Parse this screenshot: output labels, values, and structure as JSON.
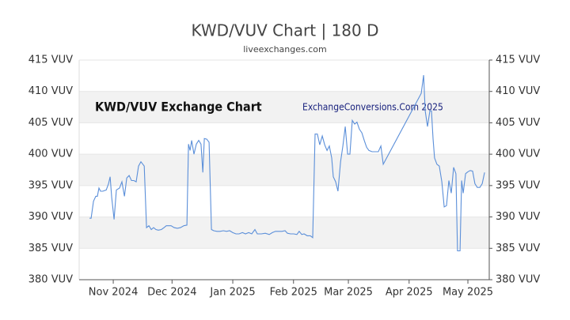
{
  "chart_data": {
    "type": "line",
    "title": "KWD/VUV Chart | 180 D",
    "subtitle": "liveexchanges.com",
    "annotations": [
      "KWD/VUV Exchange Chart",
      "ExchangeConversions.Com 2025"
    ],
    "xlim": [
      -17.4,
      191.9
    ],
    "xticks": [
      {
        "value": 0,
        "label": "Nov 2024"
      },
      {
        "value": 30,
        "label": "Dec 2024"
      },
      {
        "value": 61,
        "label": "Jan 2025"
      },
      {
        "value": 92,
        "label": "Feb 2025"
      },
      {
        "value": 120,
        "label": "Mar 2025"
      },
      {
        "value": 151,
        "label": "Apr 2025"
      },
      {
        "value": 181,
        "label": "May 2025"
      }
    ],
    "ylim": [
      380,
      415
    ],
    "yticks": [
      {
        "value": 380,
        "label": "380 VUV"
      },
      {
        "value": 385,
        "label": "385 VUV"
      },
      {
        "value": 390,
        "label": "390 VUV"
      },
      {
        "value": 395,
        "label": "395 VUV"
      },
      {
        "value": 400,
        "label": "400 VUV"
      },
      {
        "value": 405,
        "label": "405 VUV"
      },
      {
        "value": 410,
        "label": "410 VUV"
      },
      {
        "value": 415,
        "label": "415 VUV"
      }
    ],
    "grid": true,
    "series": [
      {
        "color": "#5b8fd9",
        "x": [
          -12.1,
          -11.3,
          -10.1,
          -8.9,
          -8.1,
          -7.3,
          -6.5,
          -5.3,
          -3.6,
          -2.4,
          -1.6,
          -0.8,
          0.4,
          1.6,
          3.2,
          4.4,
          5.7,
          6.9,
          8.1,
          9.3,
          10.5,
          11.7,
          12.9,
          14.1,
          15.8,
          17.0,
          18.2,
          19.4,
          20.6,
          21.8,
          23.0,
          24.6,
          25.9,
          27.1,
          28.3,
          29.5,
          31.1,
          32.7,
          34.3,
          36.0,
          37.6,
          38.4,
          39.2,
          40.0,
          41.2,
          42.4,
          43.6,
          44.8,
          45.7,
          46.5,
          47.7,
          48.9,
          50.1,
          51.3,
          52.9,
          54.5,
          56.2,
          57.8,
          59.4,
          61.0,
          62.6,
          64.2,
          65.9,
          67.5,
          69.1,
          70.7,
          72.3,
          73.5,
          75.6,
          77.6,
          79.6,
          81.2,
          82.8,
          84.4,
          86.1,
          87.7,
          88.9,
          90.5,
          92.1,
          93.7,
          94.9,
          96.2,
          97.4,
          99.0,
          100.6,
          101.8,
          103.0,
          104.2,
          105.4,
          106.7,
          107.9,
          109.1,
          110.3,
          111.5,
          112.3,
          113.5,
          114.7,
          116.0,
          117.2,
          118.4,
          119.6,
          120.8,
          122.0,
          123.2,
          124.4,
          125.6,
          126.9,
          128.1,
          129.3,
          130.5,
          132.1,
          133.7,
          135.3,
          136.6,
          137.8,
          157.2,
          158.4,
          159.2,
          160.4,
          161.6,
          162.4,
          163.2,
          164.0,
          165.2,
          166.4,
          167.7,
          168.9,
          170.1,
          171.3,
          172.5,
          173.7,
          174.9,
          175.7,
          177.0,
          177.8,
          178.6,
          179.8,
          181.0,
          182.2,
          183.4,
          184.6,
          185.8,
          187.1,
          188.3,
          189.5
        ],
        "values": [
          389.8,
          389.8,
          392.5,
          393.3,
          393.3,
          394.6,
          394.1,
          394.1,
          394.3,
          395.3,
          396.4,
          393.1,
          389.6,
          394.3,
          394.6,
          395.6,
          393.3,
          396.2,
          396.6,
          395.8,
          395.8,
          395.6,
          398.1,
          398.8,
          398.1,
          388.3,
          388.6,
          388.0,
          388.3,
          388.0,
          387.9,
          388.0,
          388.3,
          388.6,
          388.6,
          388.6,
          388.3,
          388.2,
          388.3,
          388.6,
          388.7,
          401.6,
          400.6,
          402.2,
          400.0,
          401.6,
          402.2,
          401.6,
          397.1,
          402.5,
          402.4,
          401.9,
          388.0,
          387.8,
          387.7,
          387.7,
          387.8,
          387.7,
          387.8,
          387.5,
          387.3,
          387.3,
          387.5,
          387.3,
          387.5,
          387.3,
          388.0,
          387.3,
          387.3,
          387.4,
          387.2,
          387.5,
          387.7,
          387.7,
          387.7,
          387.8,
          387.4,
          387.3,
          387.3,
          387.2,
          387.7,
          387.2,
          387.3,
          387.0,
          387.0,
          386.7,
          403.2,
          403.2,
          401.5,
          402.9,
          401.5,
          400.6,
          401.3,
          399.4,
          396.4,
          395.6,
          394.1,
          398.8,
          401.3,
          404.4,
          400.0,
          400.0,
          405.4,
          404.8,
          405.1,
          404.0,
          403.4,
          402.2,
          401.1,
          400.6,
          400.4,
          400.4,
          400.4,
          401.3,
          398.4,
          409.7,
          412.6,
          406.9,
          404.4,
          406.9,
          406.9,
          402.5,
          399.4,
          398.4,
          398.1,
          395.6,
          391.6,
          391.8,
          395.8,
          393.8,
          397.9,
          396.9,
          384.6,
          384.6,
          395.8,
          393.8,
          396.9,
          397.2,
          397.4,
          397.3,
          395.3,
          394.7,
          394.7,
          395.3,
          397.1
        ]
      }
    ]
  }
}
